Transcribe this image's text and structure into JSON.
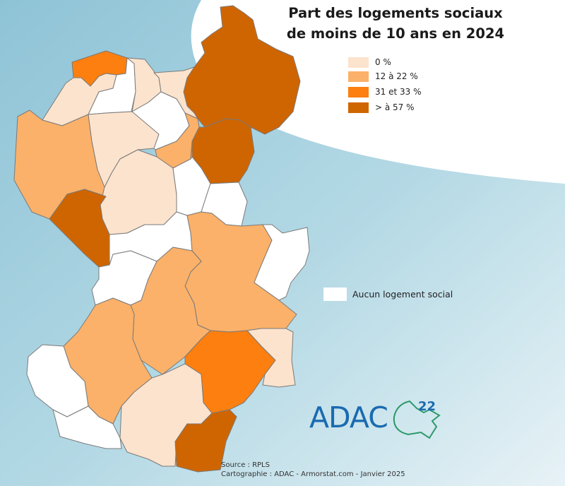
{
  "title": {
    "line1": "Part des logements sociaux",
    "line2": "de moins de 10 ans en 2024"
  },
  "legend": [
    {
      "label": "0 %",
      "color": "#fce3cd"
    },
    {
      "label": "12 à 22 %",
      "color": "#fbb169"
    },
    {
      "label": "31 et 33 %",
      "color": "#fd7f0f"
    },
    {
      "label": "> à 57 %",
      "color": "#cf6500"
    }
  ],
  "no_data": {
    "label": "Aucun logement social",
    "color": "#ffffff"
  },
  "logo": {
    "text": "ADAC",
    "superscript": "22"
  },
  "credits": {
    "source": "Source : RPLS",
    "cartography": "Cartographie : ADAC - Armorstat.com - Janvier 2025"
  },
  "colors": {
    "sea": "#a8d0de",
    "land_light": "#ffffff",
    "class_0": "#fce3cd",
    "class_12_22": "#fbb169",
    "class_31_33": "#fd7f0f",
    "class_57": "#cf6500",
    "no_data": "#ffffff",
    "logo_blue": "#1a6bb0",
    "logo_green": "#2e9a6a"
  }
}
